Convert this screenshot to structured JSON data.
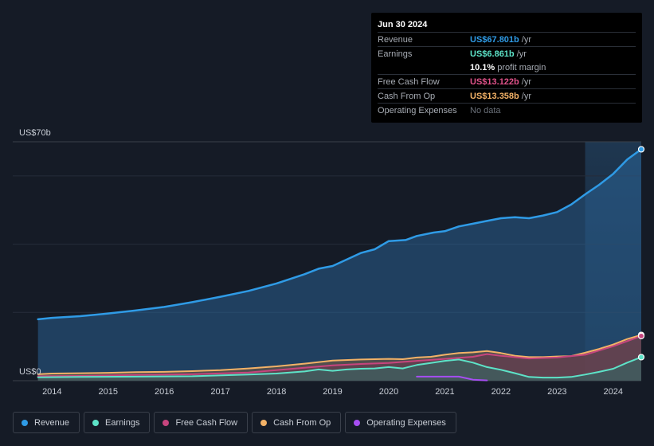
{
  "tooltip": {
    "date": "Jun 30 2024",
    "rows": [
      {
        "label": "Revenue",
        "value": "US$67.801b",
        "unit": "/yr",
        "color": "#2f9be6"
      },
      {
        "label": "Earnings",
        "value": "US$6.861b",
        "unit": "/yr",
        "color": "#5de3c8"
      },
      {
        "label": "",
        "value": "10.1%",
        "unit": "profit margin",
        "color": "#ffffff"
      },
      {
        "label": "Free Cash Flow",
        "value": "US$13.122b",
        "unit": "/yr",
        "color": "#e0528a"
      },
      {
        "label": "Cash From Op",
        "value": "US$13.358b",
        "unit": "/yr",
        "color": "#f3b267"
      },
      {
        "label": "Operating Expenses",
        "value": "No data",
        "unit": "",
        "color": "#6b717a"
      }
    ]
  },
  "legend": [
    {
      "label": "Revenue",
      "color": "#2f9be6"
    },
    {
      "label": "Earnings",
      "color": "#5de3c8"
    },
    {
      "label": "Free Cash Flow",
      "color": "#c7457e"
    },
    {
      "label": "Cash From Op",
      "color": "#f3b267"
    },
    {
      "label": "Operating Expenses",
      "color": "#a64ef2"
    }
  ],
  "chart_data": {
    "type": "area",
    "title": "",
    "y_top_label": "US$70b",
    "y_bottom_label": "US$0",
    "ylim": [
      0,
      70
    ],
    "xlim": [
      2013.3,
      2024.5
    ],
    "forecast_start": 2023.5,
    "x_ticks": [
      2014,
      2015,
      2016,
      2017,
      2018,
      2019,
      2020,
      2021,
      2022,
      2023,
      2024
    ],
    "series": [
      {
        "name": "Revenue",
        "color": "#2f9be6",
        "fill": true,
        "points": [
          [
            2013.75,
            18
          ],
          [
            2014.0,
            18.4
          ],
          [
            2014.5,
            18.9
          ],
          [
            2015.0,
            19.7
          ],
          [
            2015.5,
            20.6
          ],
          [
            2016.0,
            21.6
          ],
          [
            2016.5,
            23
          ],
          [
            2017.0,
            24.6
          ],
          [
            2017.5,
            26.3
          ],
          [
            2018.0,
            28.5
          ],
          [
            2018.5,
            31.2
          ],
          [
            2018.75,
            32.8
          ],
          [
            2019.0,
            33.6
          ],
          [
            2019.25,
            35.5
          ],
          [
            2019.5,
            37.4
          ],
          [
            2019.75,
            38.5
          ],
          [
            2020.0,
            40.9
          ],
          [
            2020.3,
            41.2
          ],
          [
            2020.5,
            42.4
          ],
          [
            2020.8,
            43.4
          ],
          [
            2021.0,
            43.8
          ],
          [
            2021.25,
            45.2
          ],
          [
            2021.5,
            46
          ],
          [
            2021.75,
            46.8
          ],
          [
            2022.0,
            47.6
          ],
          [
            2022.25,
            47.9
          ],
          [
            2022.5,
            47.6
          ],
          [
            2022.75,
            48.4
          ],
          [
            2023.0,
            49.4
          ],
          [
            2023.25,
            51.6
          ],
          [
            2023.5,
            54.6
          ],
          [
            2023.75,
            57.4
          ],
          [
            2024.0,
            60.6
          ],
          [
            2024.25,
            64.8
          ],
          [
            2024.5,
            67.8
          ]
        ]
      },
      {
        "name": "Cash From Op",
        "color": "#f3b267",
        "fill": true,
        "points": [
          [
            2013.75,
            1.9
          ],
          [
            2014.0,
            2.1
          ],
          [
            2014.5,
            2.2
          ],
          [
            2015.0,
            2.3
          ],
          [
            2015.5,
            2.5
          ],
          [
            2016.0,
            2.6
          ],
          [
            2016.5,
            2.8
          ],
          [
            2017.0,
            3.1
          ],
          [
            2017.5,
            3.6
          ],
          [
            2018.0,
            4.2
          ],
          [
            2018.5,
            5.0
          ],
          [
            2019.0,
            5.9
          ],
          [
            2019.5,
            6.2
          ],
          [
            2020.0,
            6.4
          ],
          [
            2020.25,
            6.3
          ],
          [
            2020.5,
            6.8
          ],
          [
            2020.75,
            7.0
          ],
          [
            2021.0,
            7.6
          ],
          [
            2021.25,
            8.1
          ],
          [
            2021.5,
            8.3
          ],
          [
            2021.75,
            8.7
          ],
          [
            2022.0,
            8.1
          ],
          [
            2022.25,
            7.3
          ],
          [
            2022.5,
            6.9
          ],
          [
            2022.75,
            6.9
          ],
          [
            2023.0,
            7.1
          ],
          [
            2023.25,
            7.2
          ],
          [
            2023.5,
            8.2
          ],
          [
            2023.75,
            9.3
          ],
          [
            2024.0,
            10.6
          ],
          [
            2024.25,
            12.2
          ],
          [
            2024.5,
            13.4
          ]
        ]
      },
      {
        "name": "Free Cash Flow",
        "color": "#c7457e",
        "fill": true,
        "points": [
          [
            2013.75,
            1.3
          ],
          [
            2014.5,
            1.4
          ],
          [
            2015.5,
            1.7
          ],
          [
            2016.5,
            1.9
          ],
          [
            2017.5,
            2.4
          ],
          [
            2018.5,
            3.8
          ],
          [
            2019.0,
            4.5
          ],
          [
            2019.5,
            4.9
          ],
          [
            2020.0,
            5.2
          ],
          [
            2020.5,
            5.8
          ],
          [
            2021.0,
            6.4
          ],
          [
            2021.5,
            7.0
          ],
          [
            2021.75,
            7.8
          ],
          [
            2022.0,
            7.3
          ],
          [
            2022.5,
            6.5
          ],
          [
            2023.0,
            6.8
          ],
          [
            2023.5,
            7.6
          ],
          [
            2024.0,
            10.1
          ],
          [
            2024.5,
            13.1
          ]
        ]
      },
      {
        "name": "Earnings",
        "color": "#5de3c8",
        "fill": true,
        "points": [
          [
            2013.75,
            1.0
          ],
          [
            2014.5,
            1.1
          ],
          [
            2015.5,
            1.2
          ],
          [
            2016.5,
            1.3
          ],
          [
            2017.5,
            1.8
          ],
          [
            2018.0,
            2.1
          ],
          [
            2018.5,
            2.7
          ],
          [
            2018.75,
            3.3
          ],
          [
            2019.0,
            2.9
          ],
          [
            2019.25,
            3.3
          ],
          [
            2019.5,
            3.5
          ],
          [
            2019.75,
            3.6
          ],
          [
            2020.0,
            4.0
          ],
          [
            2020.25,
            3.6
          ],
          [
            2020.5,
            4.6
          ],
          [
            2020.75,
            5.2
          ],
          [
            2021.0,
            5.8
          ],
          [
            2021.25,
            6.2
          ],
          [
            2021.5,
            5.3
          ],
          [
            2021.75,
            4.0
          ],
          [
            2022.0,
            3.2
          ],
          [
            2022.25,
            2.2
          ],
          [
            2022.5,
            1.1
          ],
          [
            2022.75,
            0.9
          ],
          [
            2023.0,
            0.9
          ],
          [
            2023.25,
            1.1
          ],
          [
            2023.5,
            1.8
          ],
          [
            2023.75,
            2.6
          ],
          [
            2024.0,
            3.5
          ],
          [
            2024.25,
            5.3
          ],
          [
            2024.5,
            6.9
          ]
        ]
      },
      {
        "name": "Operating Expenses",
        "color": "#a64ef2",
        "fill": false,
        "points": [
          [
            2020.5,
            1.2
          ],
          [
            2021.25,
            1.2
          ],
          [
            2021.5,
            0.3
          ],
          [
            2021.75,
            0.1
          ]
        ]
      }
    ]
  }
}
